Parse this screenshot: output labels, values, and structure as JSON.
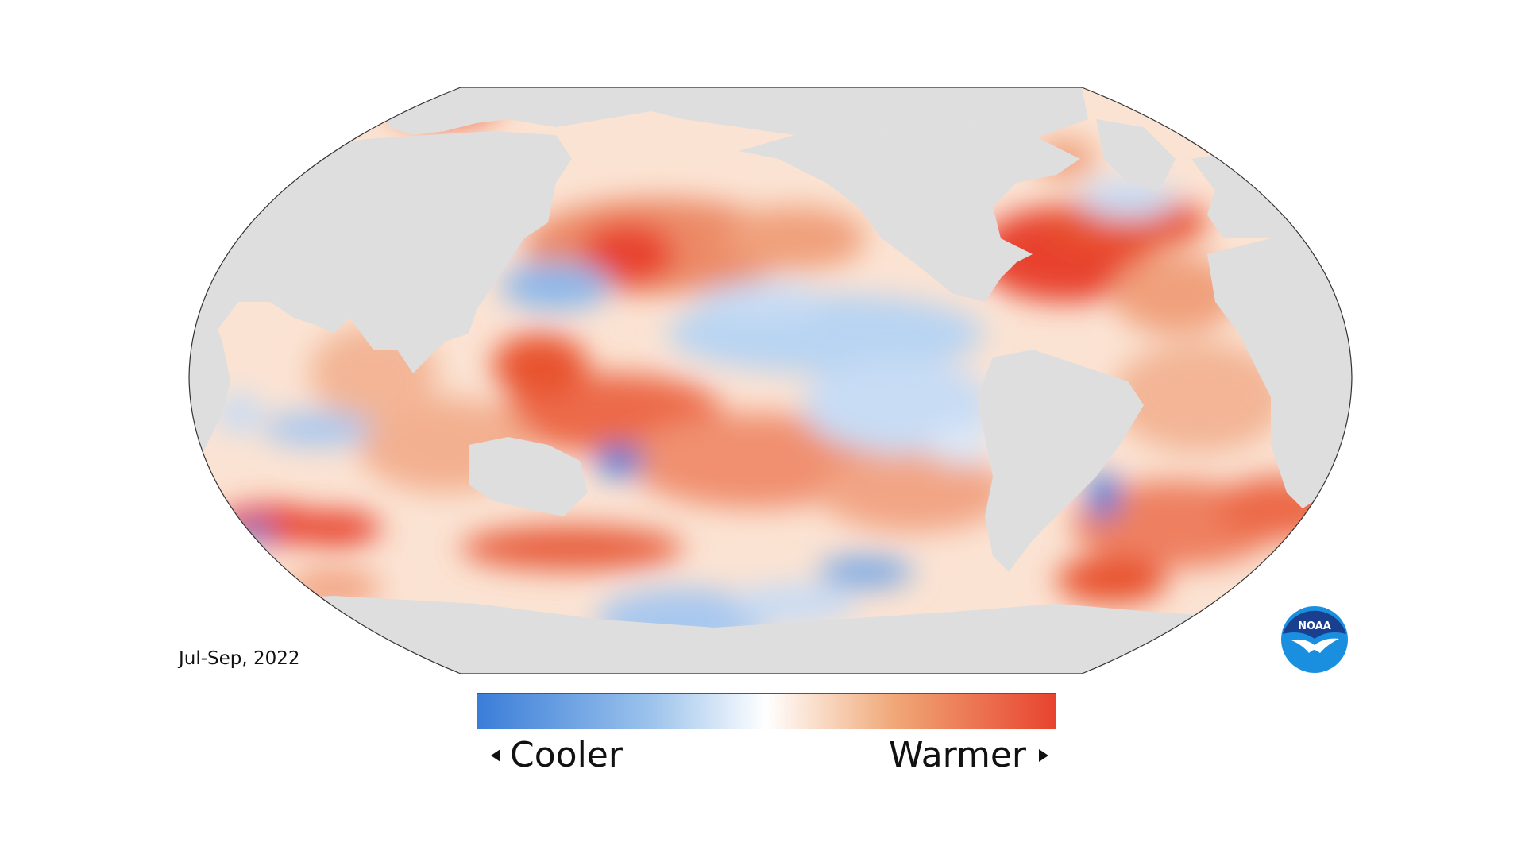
{
  "period": "Jul-Sep, 2022",
  "legend": {
    "low_label": "Cooler",
    "high_label": "Warmer",
    "colors": {
      "cold": "#3a7dd8",
      "cool": "#9cc3ec",
      "neutral": "#ffffff",
      "warm": "#f0a878",
      "hot": "#e8432e"
    }
  },
  "map": {
    "projection": "robinson",
    "land_color": "#dedede",
    "outline_color": "#333333"
  },
  "logo": {
    "text": "NOAA",
    "icon": "noaa-logo-icon",
    "colors": {
      "top": "#1b3f8f",
      "bottom": "#1a8fe0",
      "bird": "#ffffff"
    }
  }
}
